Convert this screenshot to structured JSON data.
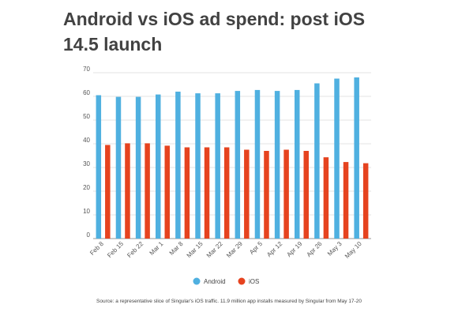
{
  "chart_data": {
    "type": "bar",
    "title": "Android vs iOS ad spend: post iOS 14.5 launch",
    "categories": [
      "Feb 8",
      "Feb 15",
      "Feb 22",
      "Mar 1",
      "Mar 8",
      "Mar 15",
      "Mar 22",
      "Mar 29",
      "Apr 5",
      "Apr 12",
      "Apr 19",
      "Apr 26",
      "May 3",
      "May 10"
    ],
    "series": [
      {
        "name": "Android",
        "color": "#4fb0e0",
        "values": [
          60.5,
          59.8,
          59.8,
          60.8,
          62.0,
          61.3,
          61.3,
          62.3,
          62.7,
          62.3,
          62.7,
          65.5,
          67.5,
          68.0
        ]
      },
      {
        "name": "iOS",
        "color": "#e6431f",
        "values": [
          39.5,
          40.2,
          40.2,
          39.2,
          38.5,
          38.5,
          38.5,
          37.5,
          37.0,
          37.5,
          37.0,
          34.3,
          32.3,
          31.8
        ]
      }
    ],
    "ylim": [
      0,
      70
    ],
    "yticks": [
      0,
      10,
      20,
      30,
      40,
      50,
      60,
      70
    ],
    "grid": true,
    "legend_position": "bottom-center",
    "xlabel": "",
    "ylabel": "",
    "source": "Source: a representative slice of Singular's iOS traffic. 11.9 million app installs measured by Singular from May 17-20"
  }
}
